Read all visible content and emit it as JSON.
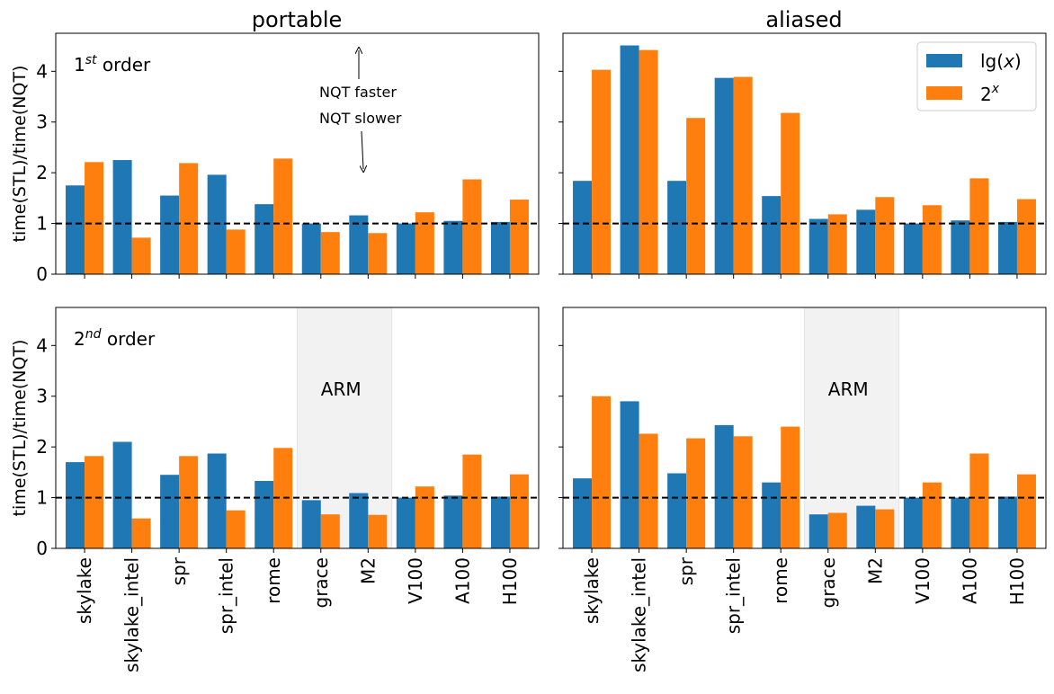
{
  "figure": {
    "ylabel": "time(STL)/time(NQT)",
    "columns": [
      "portable",
      "aliased"
    ],
    "row_labels": [
      {
        "num": "1",
        "sup": "st",
        "rest": " order"
      },
      {
        "num": "2",
        "sup": "nd",
        "rest": " order"
      }
    ],
    "arm_label": "ARM",
    "annotation_faster": "NQT faster",
    "annotation_slower": "NQT slower",
    "colors": {
      "lg": "#1f77b4",
      "exp": "#ff7f0e",
      "arm_band": "#f2f2f2"
    }
  },
  "chart_data": [
    {
      "type": "bar",
      "column": "portable",
      "row": "1st order",
      "categories": [
        "skylake",
        "skylake_intel",
        "spr",
        "spr_intel",
        "rome",
        "grace",
        "M2",
        "V100",
        "A100",
        "H100"
      ],
      "ylim": [
        0,
        4.75
      ],
      "yticks": [
        0,
        1,
        2,
        3,
        4
      ],
      "reference_line": 1,
      "series": [
        {
          "name": "lg(x)",
          "values": [
            1.75,
            2.25,
            1.55,
            1.96,
            1.38,
            1.0,
            1.16,
            1.0,
            1.05,
            1.03
          ]
        },
        {
          "name": "2^x",
          "values": [
            2.21,
            0.72,
            2.19,
            0.88,
            2.28,
            0.83,
            0.81,
            1.22,
            1.87,
            1.47
          ]
        }
      ]
    },
    {
      "type": "bar",
      "column": "aliased",
      "row": "1st order",
      "categories": [
        "skylake",
        "skylake_intel",
        "spr",
        "spr_intel",
        "rome",
        "grace",
        "M2",
        "V100",
        "A100",
        "H100"
      ],
      "ylim": [
        0,
        4.75
      ],
      "yticks": [
        0,
        1,
        2,
        3,
        4
      ],
      "reference_line": 1,
      "legend": "top-right",
      "series": [
        {
          "name": "lg(x)",
          "values": [
            1.84,
            4.51,
            1.84,
            3.87,
            1.54,
            1.09,
            1.27,
            1.0,
            1.06,
            1.03
          ]
        },
        {
          "name": "2^x",
          "values": [
            4.03,
            4.42,
            3.08,
            3.89,
            3.18,
            1.18,
            1.52,
            1.36,
            1.89,
            1.48
          ]
        }
      ]
    },
    {
      "type": "bar",
      "column": "portable",
      "row": "2nd order",
      "categories": [
        "skylake",
        "skylake_intel",
        "spr",
        "spr_intel",
        "rome",
        "grace",
        "M2",
        "V100",
        "A100",
        "H100"
      ],
      "ylim": [
        0,
        4.75
      ],
      "yticks": [
        0,
        1,
        2,
        3,
        4
      ],
      "reference_line": 1,
      "arm_region": [
        "grace",
        "M2"
      ],
      "series": [
        {
          "name": "lg(x)",
          "values": [
            1.7,
            2.1,
            1.45,
            1.87,
            1.33,
            0.95,
            1.09,
            1.0,
            1.04,
            1.02
          ]
        },
        {
          "name": "2^x",
          "values": [
            1.82,
            0.59,
            1.82,
            0.75,
            1.98,
            0.67,
            0.66,
            1.22,
            1.85,
            1.46
          ]
        }
      ]
    },
    {
      "type": "bar",
      "column": "aliased",
      "row": "2nd order",
      "categories": [
        "skylake",
        "skylake_intel",
        "spr",
        "spr_intel",
        "rome",
        "grace",
        "M2",
        "V100",
        "A100",
        "H100"
      ],
      "ylim": [
        0,
        4.75
      ],
      "yticks": [
        0,
        1,
        2,
        3,
        4
      ],
      "reference_line": 1,
      "arm_region": [
        "grace",
        "M2"
      ],
      "series": [
        {
          "name": "lg(x)",
          "values": [
            1.38,
            2.9,
            1.48,
            2.43,
            1.3,
            0.67,
            0.84,
            1.0,
            1.0,
            1.02
          ]
        },
        {
          "name": "2^x",
          "values": [
            3.0,
            2.26,
            2.17,
            2.21,
            2.4,
            0.7,
            0.77,
            1.3,
            1.87,
            1.46
          ]
        }
      ]
    }
  ]
}
